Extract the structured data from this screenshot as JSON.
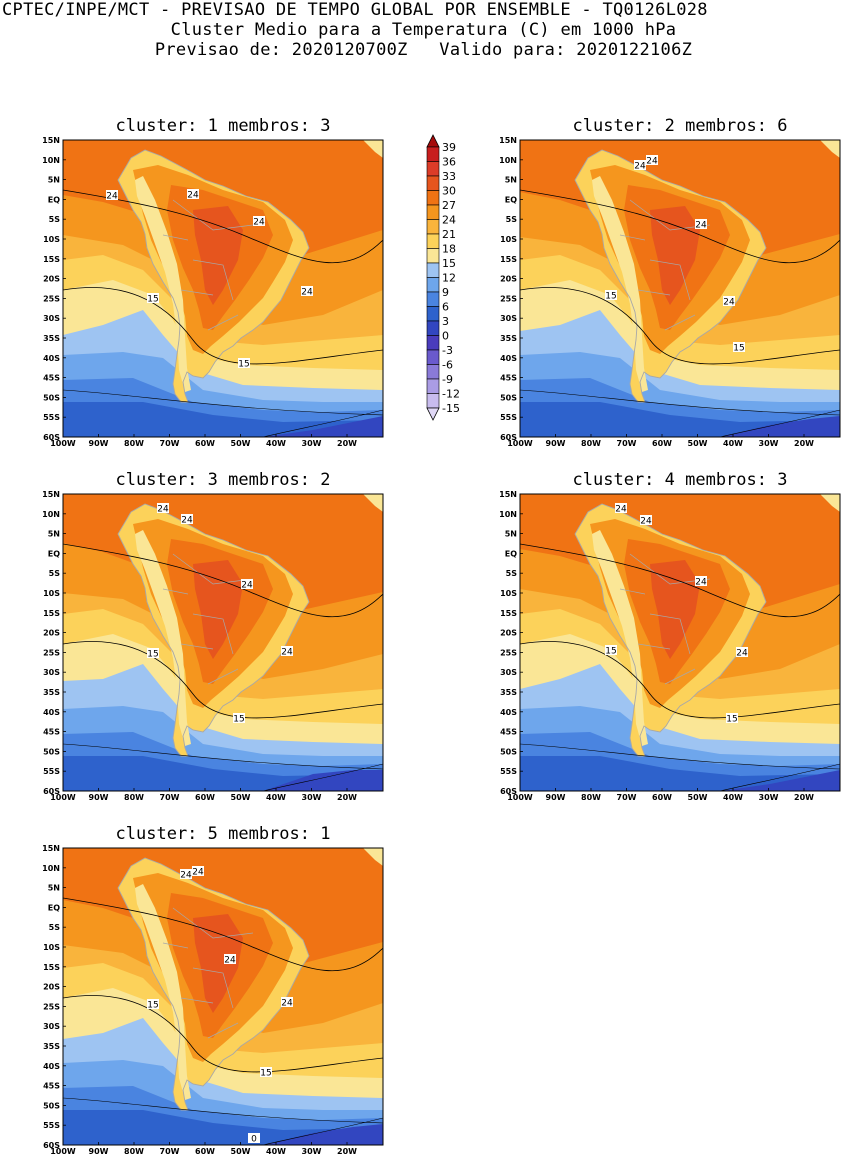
{
  "header": {
    "line1": "CPTEC/INPE/MCT - PREVISAO DE TEMPO GLOBAL POR ENSEMBLE - TQ0126L028",
    "line2": "Cluster Medio para a Temperatura (C) em 1000 hPa",
    "line3": "Previsao de: 2020120700Z   Valido para: 2020122106Z"
  },
  "axes": {
    "lat_labels": [
      "15N",
      "10N",
      "5N",
      "EQ",
      "5S",
      "10S",
      "15S",
      "20S",
      "25S",
      "30S",
      "35S",
      "40S",
      "45S",
      "50S",
      "55S",
      "60S"
    ],
    "lon_labels": [
      "100W",
      "90W",
      "80W",
      "70W",
      "60W",
      "50W",
      "40W",
      "30W",
      "20W"
    ]
  },
  "colorbar": {
    "labels": [
      "39",
      "36",
      "33",
      "30",
      "27",
      "24",
      "21",
      "18",
      "15",
      "12",
      "9",
      "6",
      "3",
      "0",
      "-3",
      "-6",
      "-9",
      "-12",
      "-15"
    ],
    "colors": [
      "#a50b0b",
      "#c81e1e",
      "#dc3c28",
      "#e6551e",
      "#f07314",
      "#f5961e",
      "#f9b43c",
      "#fcd25a",
      "#fae696",
      "#9ec4f2",
      "#6ea6ec",
      "#4a84e0",
      "#2e62cc",
      "#3246c0",
      "#4a3cbc",
      "#6a5acd",
      "#8a7ad8",
      "#aa9ce4",
      "#c8bcee",
      "#e0d8f6"
    ]
  },
  "panels": [
    {
      "title": "cluster: 1   membros: 3",
      "contour_labels": [
        "24",
        "24",
        "24",
        "24",
        "15",
        "15"
      ]
    },
    {
      "title": "cluster: 2   membros: 6",
      "contour_labels": [
        "24",
        "24",
        "24",
        "24",
        "15",
        "15"
      ]
    },
    {
      "title": "cluster: 3   membros: 2",
      "contour_labels": [
        "24",
        "24",
        "24",
        "24",
        "15",
        "15"
      ]
    },
    {
      "title": "cluster: 4   membros: 3",
      "contour_labels": [
        "24",
        "24",
        "24",
        "24",
        "15",
        "15"
      ]
    },
    {
      "title": "cluster: 5   membros: 1",
      "contour_labels": [
        "24",
        "24",
        "24",
        "24",
        "15",
        "15",
        "0"
      ]
    }
  ]
}
